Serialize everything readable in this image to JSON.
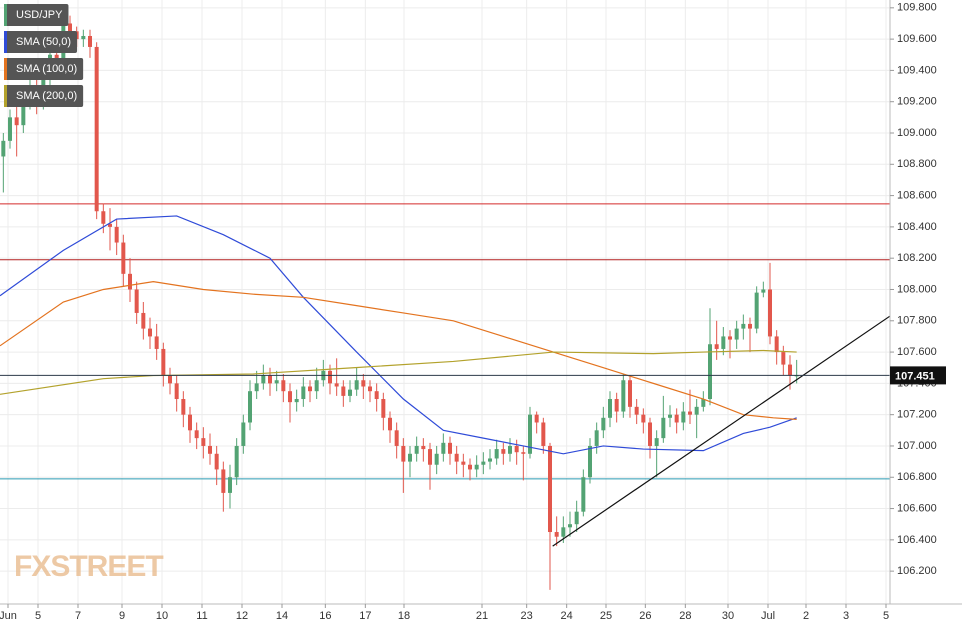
{
  "chart_data": {
    "type": "candlestick",
    "title": "USD/JPY",
    "logo": "FXSTREET",
    "up_color": "#53a373",
    "down_color": "#e2574c",
    "grid": true,
    "xlim": [
      -0.5,
      133
    ],
    "ylim": [
      105.99,
      109.85
    ],
    "xticks": [
      {
        "value": 0.7,
        "label": "Jun"
      },
      {
        "value": 5.2,
        "label": "5"
      },
      {
        "value": 11.2,
        "label": "7"
      },
      {
        "value": 17.8,
        "label": "9"
      },
      {
        "value": 23.8,
        "label": "10"
      },
      {
        "value": 29.8,
        "label": "11"
      },
      {
        "value": 35.8,
        "label": "12"
      },
      {
        "value": 41.8,
        "label": "14"
      },
      {
        "value": 48.3,
        "label": "16"
      },
      {
        "value": 54.3,
        "label": "17"
      },
      {
        "value": 60.1,
        "label": "18"
      },
      {
        "value": 71.8,
        "label": "21"
      },
      {
        "value": 78.5,
        "label": "23"
      },
      {
        "value": 84.5,
        "label": "24"
      },
      {
        "value": 90.4,
        "label": "25"
      },
      {
        "value": 96.3,
        "label": "26"
      },
      {
        "value": 102.3,
        "label": "28"
      },
      {
        "value": 108.7,
        "label": "30"
      },
      {
        "value": 114.7,
        "label": "Jul"
      },
      {
        "value": 120.4,
        "label": "2"
      },
      {
        "value": 126.4,
        "label": "3"
      },
      {
        "value": 132.4,
        "label": "5"
      }
    ],
    "yticks": [
      {
        "value": 106.2,
        "label": "106.200"
      },
      {
        "value": 106.4,
        "label": "106.400"
      },
      {
        "value": 106.6,
        "label": "106.600"
      },
      {
        "value": 106.8,
        "label": "106.800"
      },
      {
        "value": 107.0,
        "label": "107.000"
      },
      {
        "value": 107.2,
        "label": "107.200"
      },
      {
        "value": 107.4,
        "label": "107.400"
      },
      {
        "value": 107.6,
        "label": "107.600"
      },
      {
        "value": 107.8,
        "label": "107.800"
      },
      {
        "value": 108.0,
        "label": "108.000"
      },
      {
        "value": 108.2,
        "label": "108.200"
      },
      {
        "value": 108.4,
        "label": "108.400"
      },
      {
        "value": 108.6,
        "label": "108.600"
      },
      {
        "value": 108.8,
        "label": "108.800"
      },
      {
        "value": 109.0,
        "label": "109.000"
      },
      {
        "value": 109.2,
        "label": "109.200"
      },
      {
        "value": 109.4,
        "label": "109.400"
      },
      {
        "value": 109.6,
        "label": "109.600"
      },
      {
        "value": 109.8,
        "label": "109.800"
      }
    ],
    "candles": {
      "open": [
        108.85,
        108.95,
        109.1,
        109.05,
        109.2,
        109.3,
        109.2,
        109.35,
        109.5,
        109.45,
        109.7,
        109.65,
        109.6,
        109.62,
        109.55,
        108.5,
        108.42,
        108.4,
        108.3,
        108.1,
        108.0,
        107.85,
        107.75,
        107.7,
        107.62,
        107.45,
        107.4,
        107.3,
        107.2,
        107.1,
        107.05,
        107.0,
        106.95,
        106.85,
        106.7,
        106.8,
        107.0,
        107.15,
        107.35,
        107.4,
        107.45,
        107.4,
        107.42,
        107.35,
        107.28,
        107.3,
        107.38,
        107.35,
        107.42,
        107.48,
        107.4,
        107.38,
        107.32,
        107.36,
        107.42,
        107.38,
        107.35,
        107.3,
        107.18,
        107.1,
        107.0,
        106.9,
        106.95,
        107.0,
        106.98,
        106.88,
        106.95,
        107.02,
        106.95,
        106.9,
        106.88,
        106.85,
        106.88,
        106.9,
        106.92,
        106.98,
        106.95,
        107.0,
        106.96,
        106.95,
        107.2,
        107.15,
        107.0,
        106.45,
        106.42,
        106.48,
        106.5,
        106.58,
        106.8,
        107.0,
        107.1,
        107.18,
        107.3,
        107.22,
        107.42,
        107.25,
        107.2,
        107.15,
        107.0,
        107.05,
        107.18,
        107.2,
        107.15,
        107.22,
        107.2,
        107.25,
        107.3,
        107.65,
        107.62,
        107.7,
        107.68,
        107.75,
        107.78,
        107.75,
        107.98,
        108.0,
        107.7,
        107.6,
        107.52,
        107.45
      ],
      "high": [
        109.0,
        109.15,
        109.18,
        109.25,
        109.35,
        109.36,
        109.42,
        109.58,
        109.55,
        109.82,
        109.75,
        109.68,
        109.66,
        109.66,
        109.58,
        108.55,
        108.52,
        108.45,
        108.35,
        108.2,
        108.05,
        107.92,
        107.82,
        107.78,
        107.66,
        107.5,
        107.45,
        107.35,
        107.25,
        107.15,
        107.12,
        107.08,
        107.0,
        106.9,
        106.88,
        107.05,
        107.2,
        107.42,
        107.48,
        107.52,
        107.5,
        107.48,
        107.46,
        107.4,
        107.36,
        107.44,
        107.42,
        107.5,
        107.55,
        107.52,
        107.56,
        107.42,
        107.42,
        107.5,
        107.46,
        107.42,
        107.4,
        107.34,
        107.22,
        107.15,
        107.05,
        107.0,
        107.06,
        107.05,
        107.02,
        107.0,
        107.08,
        107.06,
        107.0,
        106.95,
        106.92,
        106.94,
        106.96,
        106.98,
        107.04,
        107.02,
        107.05,
        107.04,
        107.0,
        107.25,
        107.22,
        107.18,
        107.02,
        106.55,
        106.55,
        106.58,
        106.65,
        106.85,
        107.05,
        107.15,
        107.25,
        107.35,
        107.34,
        107.46,
        107.45,
        107.3,
        107.24,
        107.18,
        107.1,
        107.32,
        107.26,
        107.24,
        107.28,
        107.36,
        107.3,
        107.35,
        107.88,
        107.8,
        107.76,
        107.74,
        107.8,
        107.84,
        107.82,
        108.02,
        108.05,
        108.17,
        107.74,
        107.64,
        107.58,
        107.55
      ],
      "low": [
        108.62,
        108.9,
        108.85,
        109.0,
        109.15,
        109.12,
        109.15,
        109.3,
        109.38,
        109.4,
        109.58,
        109.55,
        109.55,
        109.48,
        108.45,
        108.36,
        108.25,
        108.22,
        108.02,
        107.92,
        107.78,
        107.68,
        107.62,
        107.55,
        107.38,
        107.33,
        107.22,
        107.12,
        107.02,
        106.98,
        106.92,
        106.88,
        106.75,
        106.58,
        106.6,
        106.75,
        106.95,
        107.1,
        107.3,
        107.36,
        107.32,
        107.35,
        107.28,
        107.15,
        107.22,
        107.25,
        107.28,
        107.3,
        107.38,
        107.33,
        107.32,
        107.25,
        107.28,
        107.32,
        107.3,
        107.28,
        107.22,
        107.1,
        107.02,
        106.92,
        106.7,
        106.8,
        106.9,
        106.9,
        106.72,
        106.82,
        106.9,
        106.88,
        106.82,
        106.8,
        106.78,
        106.8,
        106.82,
        106.85,
        106.88,
        106.88,
        106.9,
        106.88,
        106.78,
        106.92,
        107.08,
        106.95,
        106.08,
        106.36,
        106.38,
        106.42,
        106.45,
        106.55,
        106.76,
        106.95,
        107.05,
        107.12,
        107.15,
        107.18,
        107.18,
        107.14,
        107.08,
        106.92,
        106.8,
        107.02,
        107.12,
        107.08,
        107.1,
        107.14,
        107.05,
        107.22,
        107.26,
        107.55,
        107.58,
        107.56,
        107.62,
        107.68,
        107.6,
        107.72,
        107.95,
        107.65,
        107.52,
        107.45,
        107.36,
        107.4
      ],
      "close": [
        108.95,
        109.1,
        109.05,
        109.2,
        109.3,
        109.2,
        109.35,
        109.5,
        109.45,
        109.7,
        109.65,
        109.6,
        109.62,
        109.55,
        108.5,
        108.42,
        108.4,
        108.3,
        108.1,
        108.0,
        107.85,
        107.75,
        107.7,
        107.62,
        107.45,
        107.4,
        107.3,
        107.2,
        107.1,
        107.05,
        107.0,
        106.95,
        106.85,
        106.7,
        106.8,
        107.0,
        107.15,
        107.35,
        107.4,
        107.45,
        107.4,
        107.42,
        107.35,
        107.28,
        107.3,
        107.38,
        107.35,
        107.42,
        107.48,
        107.4,
        107.38,
        107.32,
        107.36,
        107.42,
        107.38,
        107.35,
        107.3,
        107.18,
        107.1,
        107.0,
        106.9,
        106.95,
        107.0,
        106.98,
        106.88,
        106.95,
        107.02,
        106.95,
        106.9,
        106.88,
        106.85,
        106.88,
        106.9,
        106.92,
        106.98,
        106.95,
        107.0,
        106.96,
        106.95,
        107.2,
        107.15,
        107.0,
        106.45,
        106.42,
        106.48,
        106.5,
        106.58,
        106.8,
        107.0,
        107.1,
        107.18,
        107.3,
        107.22,
        107.42,
        107.25,
        107.2,
        107.15,
        107.0,
        107.05,
        107.18,
        107.2,
        107.15,
        107.22,
        107.2,
        107.25,
        107.3,
        107.65,
        107.62,
        107.7,
        107.68,
        107.75,
        107.78,
        107.75,
        107.98,
        108.0,
        107.7,
        107.6,
        107.52,
        107.45,
        107.451
      ]
    },
    "series": [
      {
        "name": "SMA (50,0)",
        "color": "#2f4bd8",
        "x": [
          -0.5,
          9,
          17,
          26,
          33,
          40,
          45,
          53,
          60,
          66,
          72,
          78,
          84,
          90,
          96,
          105,
          111,
          115,
          119
        ],
        "values": [
          107.96,
          108.25,
          108.45,
          108.47,
          108.35,
          108.2,
          107.95,
          107.6,
          107.3,
          107.1,
          107.05,
          107.0,
          106.95,
          107.0,
          106.98,
          106.97,
          107.08,
          107.12,
          107.18
        ]
      },
      {
        "name": "SMA (100,0)",
        "color": "#e3731f",
        "x": [
          -0.5,
          9,
          15,
          22.5,
          30,
          37.5,
          45,
          52.5,
          60,
          67.5,
          75,
          82.5,
          90,
          97.5,
          105,
          111,
          115.5,
          119
        ],
        "values": [
          107.64,
          107.92,
          108.0,
          108.05,
          108.0,
          107.97,
          107.95,
          107.9,
          107.85,
          107.8,
          107.7,
          107.6,
          107.5,
          107.4,
          107.3,
          107.2,
          107.18,
          107.17
        ]
      },
      {
        "name": "SMA (200,0)",
        "color": "#b3a22c",
        "x": [
          -0.5,
          15,
          22.5,
          37.5,
          52.5,
          67.5,
          82.5,
          97.5,
          105,
          114,
          119
        ],
        "values": [
          107.33,
          107.43,
          107.45,
          107.46,
          107.5,
          107.54,
          107.6,
          107.59,
          107.6,
          107.61,
          107.6
        ]
      }
    ],
    "hlines": [
      {
        "value": 108.547,
        "color": "#d42a2a"
      },
      {
        "value": 108.19,
        "color": "#b32020"
      },
      {
        "value": 106.79,
        "color": "#2a9bb3"
      }
    ],
    "trendline": {
      "x": [
        82.4,
        133
      ],
      "values": [
        106.36,
        107.83
      ],
      "color": "#111111"
    },
    "legend_colors": [
      "#53a373",
      "#2f4bd8",
      "#e3731f",
      "#b3a22c"
    ]
  }
}
